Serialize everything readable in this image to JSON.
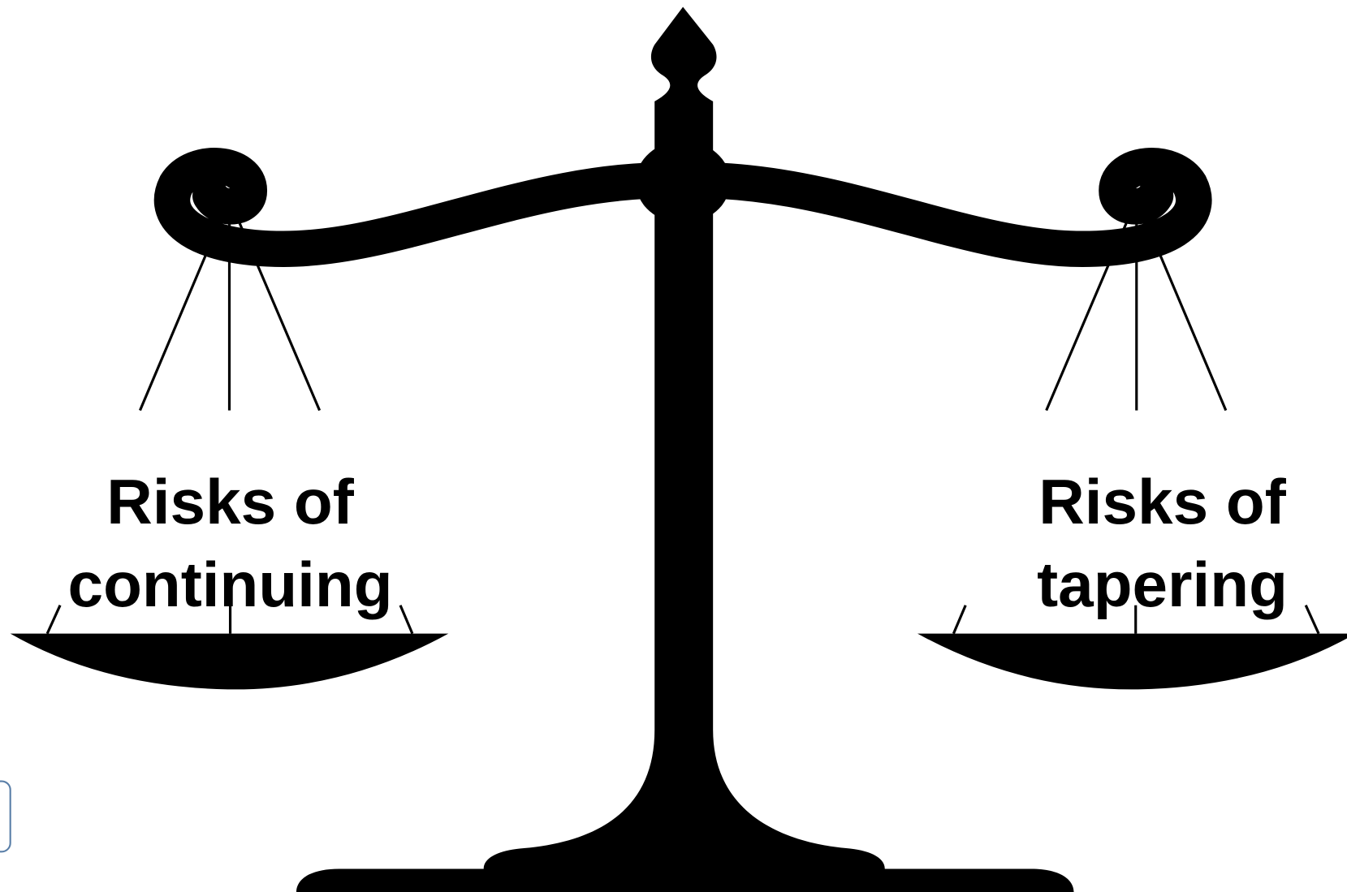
{
  "labels": {
    "left": {
      "lines": [
        "Risks of",
        "continuing"
      ]
    },
    "right": {
      "lines": [
        "Risks of",
        "tapering"
      ]
    }
  }
}
